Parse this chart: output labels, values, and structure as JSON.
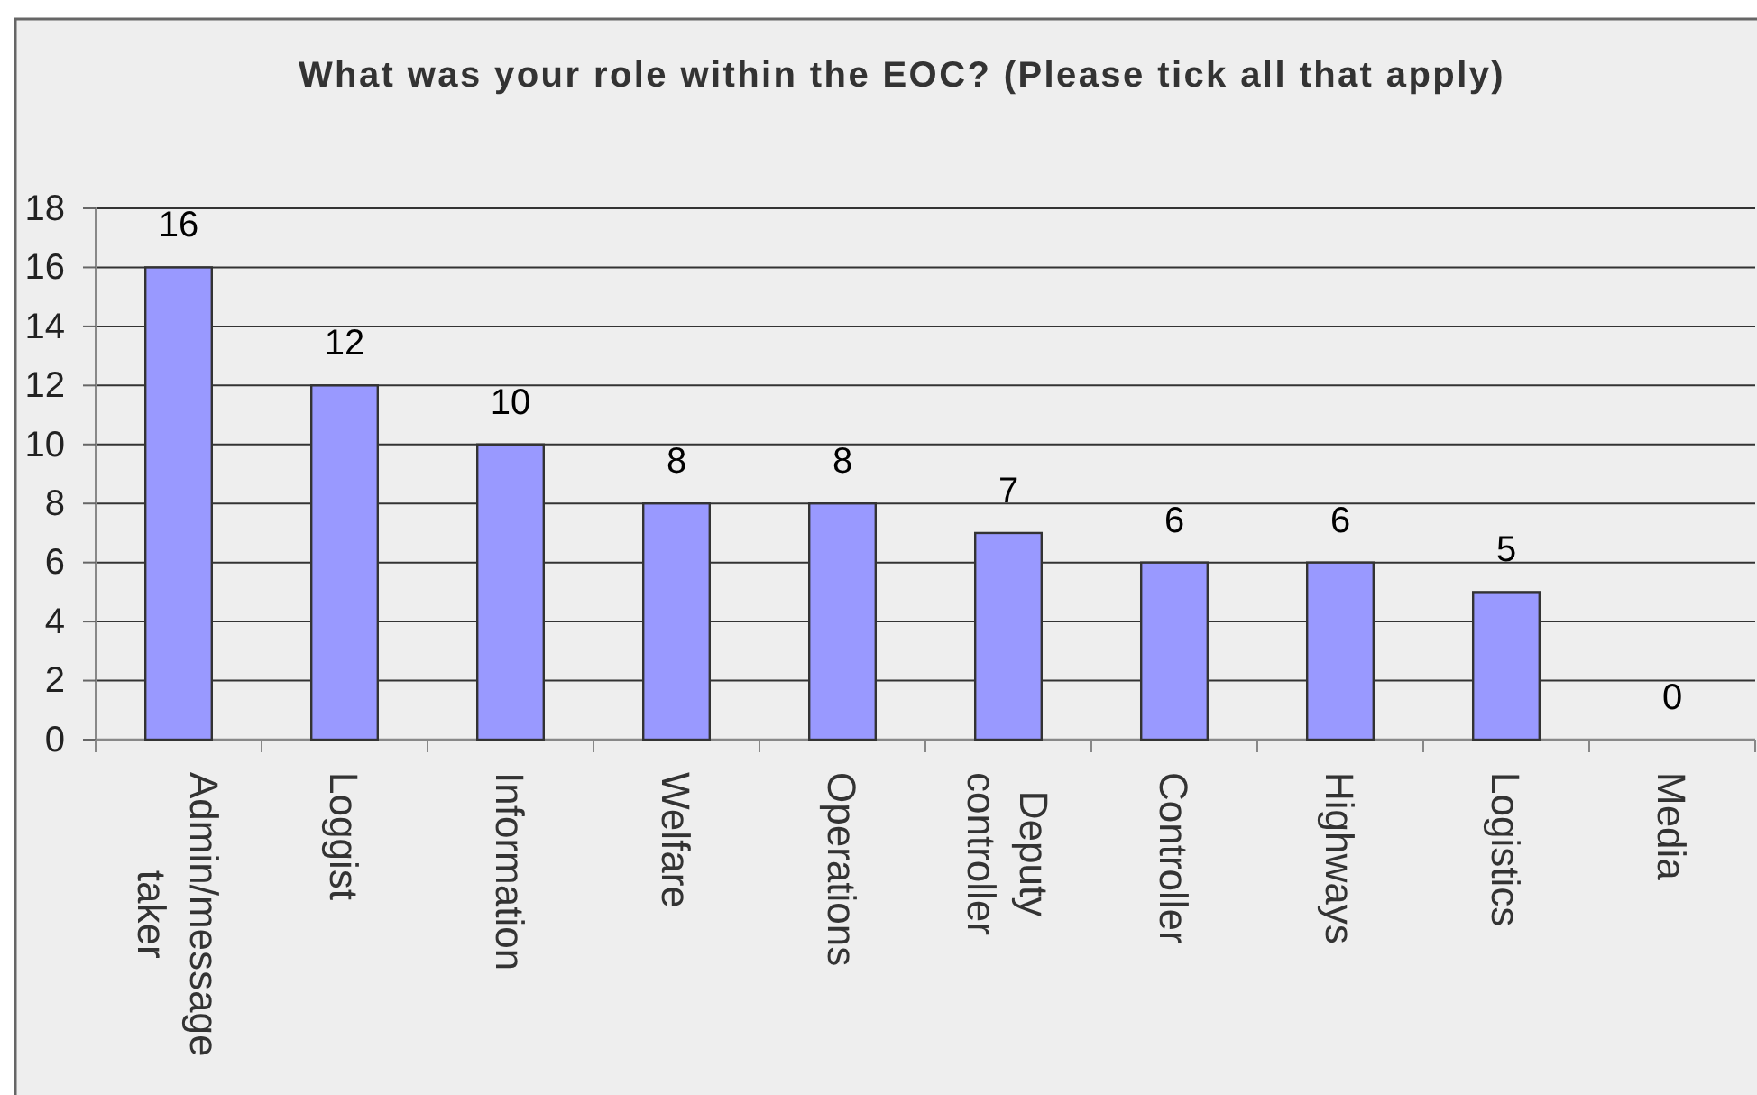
{
  "chart_data": {
    "type": "bar",
    "title": "What was your role within the EOC? (Please tick all that apply)",
    "categories": [
      "Admin/message taker",
      "Loggist",
      "Information",
      "Welfare",
      "Operations",
      "Deputy controller",
      "Controller",
      "Highways",
      "Logistics",
      "Media"
    ],
    "values": [
      16,
      12,
      10,
      8,
      8,
      7,
      6,
      6,
      5,
      0
    ],
    "color": "#9999ff",
    "ylim": [
      0,
      18
    ],
    "yticks": [
      0,
      2,
      4,
      6,
      8,
      10,
      12,
      14,
      16,
      18
    ],
    "grid": "y",
    "data_labels": true
  }
}
